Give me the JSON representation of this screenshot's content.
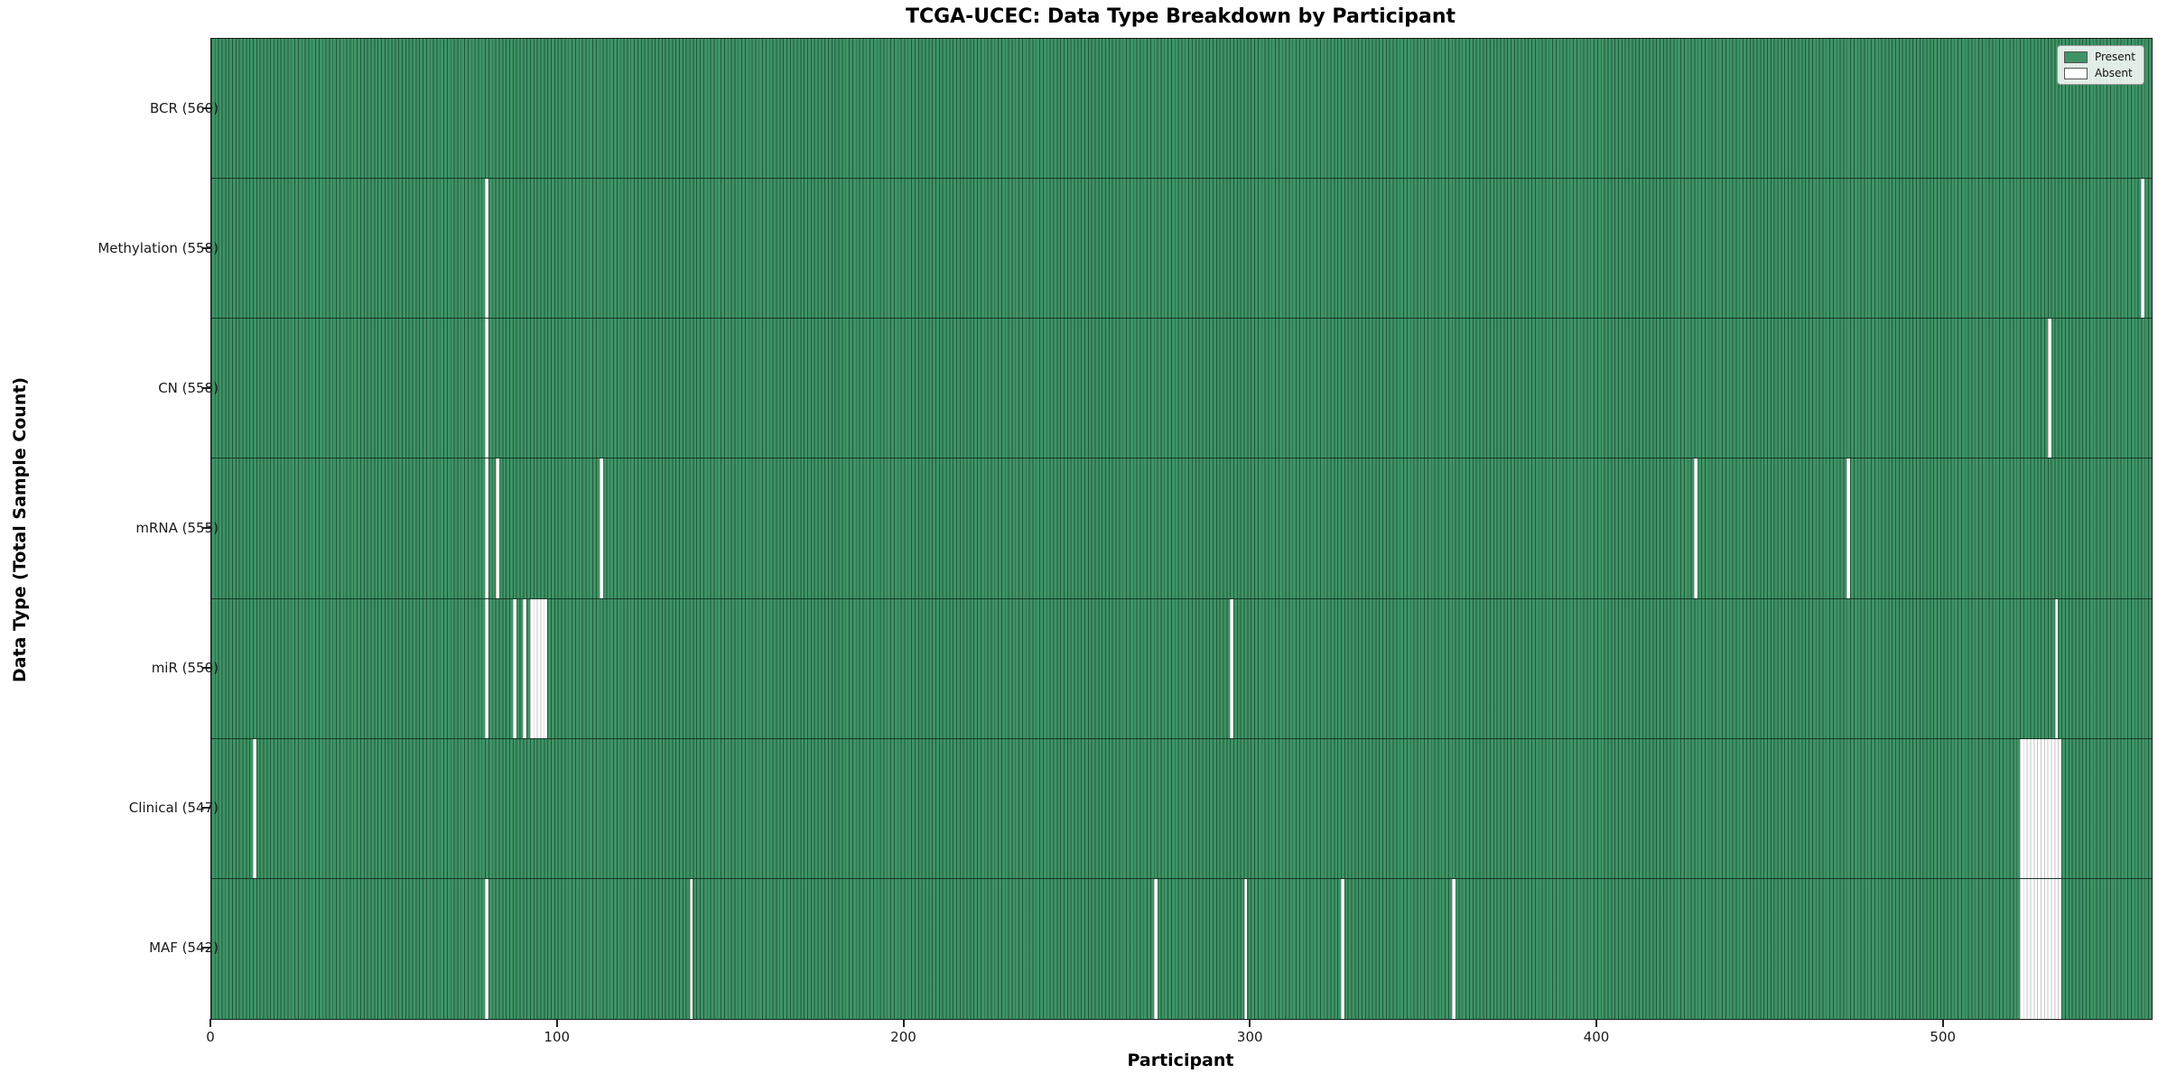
{
  "title": "TCGA-UCEC: Data Type Breakdown by Participant",
  "x_axis_label": "Participant",
  "y_axis_label": "Data Type (Total Sample Count)",
  "legend": {
    "present_label": "Present",
    "absent_label": "Absent"
  },
  "colors": {
    "present": "#3E9466",
    "absent": "#ffffff",
    "present_cell_edge": "rgba(10,40,25,0.55)",
    "absent_cell_edge": "rgba(60,60,60,0.30)",
    "spine": "#1b1b1b"
  },
  "chart_data": {
    "type": "heatmap",
    "title": "TCGA-UCEC: Data Type Breakdown by Participant",
    "xlabel": "Participant",
    "ylabel": "Data Type (Total Sample Count)",
    "legend_entries": [
      "Present",
      "Absent"
    ],
    "legend_position": "upper right",
    "grid": false,
    "n_participants": 560,
    "x_axis": {
      "ticks": [
        0,
        100,
        200,
        300,
        400,
        500
      ],
      "range": [
        0,
        560
      ]
    },
    "rows": [
      {
        "name": "BCR",
        "label": "BCR (560)",
        "present_count": 560,
        "absent_count": 0,
        "absent_runs": []
      },
      {
        "name": "Methylation",
        "label": "Methylation (558)",
        "present_count": 558,
        "absent_count": 2,
        "absent_runs": [
          [
            79,
            1
          ],
          [
            557,
            1
          ]
        ]
      },
      {
        "name": "CN",
        "label": "CN (558)",
        "present_count": 558,
        "absent_count": 2,
        "absent_runs": [
          [
            79,
            1
          ],
          [
            530,
            1
          ]
        ]
      },
      {
        "name": "mRNA",
        "label": "mRNA (555)",
        "present_count": 555,
        "absent_count": 5,
        "absent_runs": [
          [
            79,
            1
          ],
          [
            82,
            1
          ],
          [
            112,
            1
          ],
          [
            428,
            1
          ],
          [
            472,
            1
          ]
        ]
      },
      {
        "name": "miR",
        "label": "miR (550)",
        "present_count": 550,
        "absent_count": 10,
        "absent_runs": [
          [
            79,
            1
          ],
          [
            87,
            1
          ],
          [
            90,
            1
          ],
          [
            92,
            5
          ],
          [
            294,
            1
          ],
          [
            532,
            1
          ]
        ]
      },
      {
        "name": "Clinical",
        "label": "Clinical (547)",
        "present_count": 547,
        "absent_count": 13,
        "absent_runs": [
          [
            12,
            1
          ],
          [
            522,
            12
          ]
        ]
      },
      {
        "name": "MAF",
        "label": "MAF (542)",
        "present_count": 542,
        "absent_count": 18,
        "absent_runs": [
          [
            79,
            1
          ],
          [
            138,
            1
          ],
          [
            272,
            1
          ],
          [
            298,
            1
          ],
          [
            326,
            1
          ],
          [
            358,
            1
          ],
          [
            522,
            12
          ]
        ]
      }
    ]
  }
}
